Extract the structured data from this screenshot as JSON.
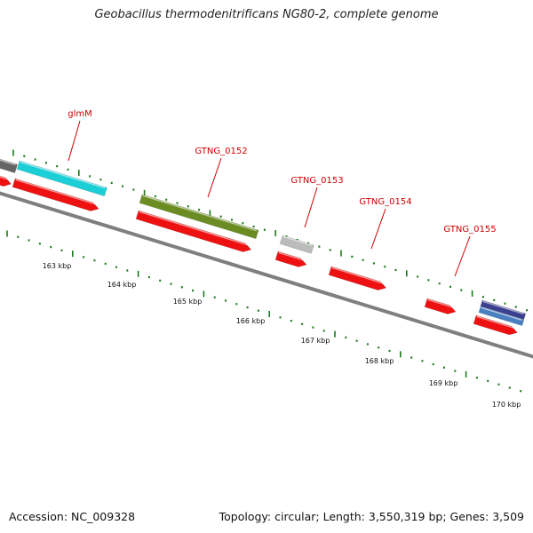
{
  "title": "Geobacillus thermodenitrificans NG80-2, complete genome",
  "footer": {
    "accession": "Accession: NC_009328",
    "summary": "Topology: circular; Length: 3,550,319 bp; Genes: 3,509"
  },
  "colors": {
    "backbone": "#7f7f7f",
    "cds": "#ee1111",
    "tick": "#1a7a1a",
    "label": "#cc0000",
    "glmM": "#1ccfd6",
    "GTNG_0152": "#6a8c22",
    "GTNG_0153": "#bbbbbb",
    "GTNG_0155_a": "#3b3f8f",
    "GTNG_0155_b": "#4a7fc0",
    "unnamed_left": "#666666"
  },
  "gene_labels": [
    "glmM",
    "GTNG_0152",
    "GTNG_0153",
    "GTNG_0154",
    "GTNG_0155"
  ],
  "kbp_labels": [
    "163 kbp",
    "164 kbp",
    "165 kbp",
    "166 kbp",
    "167 kbp",
    "168 kbp",
    "169 kbp",
    "170 kbp"
  ]
}
